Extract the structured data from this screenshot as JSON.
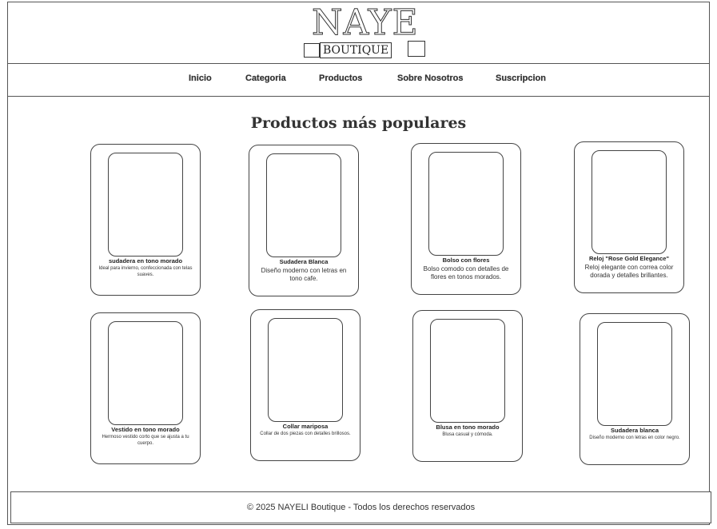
{
  "brand": {
    "name_top": "NAYE",
    "name_bottom": "BOUTIQUE"
  },
  "nav": {
    "items": [
      "Inicio",
      "Categoria",
      "Productos",
      "Sobre Nosotros",
      "Suscripcion"
    ]
  },
  "products_section": {
    "title": "Productos más populares",
    "items": [
      {
        "name": "sudadera en tono morado",
        "description": "Ideal para invierno, confeccionada con telas suaves."
      },
      {
        "name": "Sudadera Blanca",
        "description": "Diseño moderno con letras en tono cafe."
      },
      {
        "name": "Bolso con flores",
        "description": "Bolso comodo con detalles de flores en tonos morados."
      },
      {
        "name": "Reloj \"Rose Gold Elegance\"",
        "description": "Reloj elegante con correa color dorada y detalles brillantes."
      },
      {
        "name": "Vestido en tono morado",
        "description": "Hermoso vestido corto que se ajusta a tu cuerpo."
      },
      {
        "name": "Collar mariposa",
        "description": "Collar de dos piezas con detalles brillosos."
      },
      {
        "name": "Blusa en tono morado",
        "description": "Blusa casual y cómoda."
      },
      {
        "name": "Sudadera blanca",
        "description": "Diseño moderno con letras en color negro."
      }
    ]
  },
  "footer": {
    "text": "© 2025 NAYELI Boutique - Todos los derechos reservados"
  }
}
